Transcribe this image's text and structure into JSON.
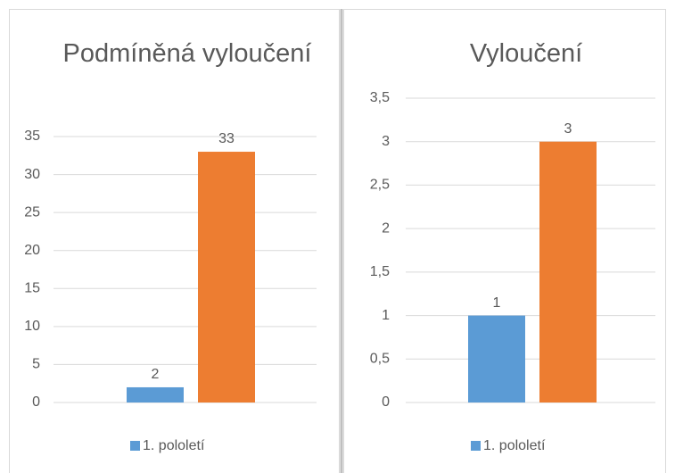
{
  "chart_data": [
    {
      "type": "bar",
      "title": "Podmíněná vyloučení",
      "series": [
        {
          "name": "1. pololetí",
          "color": "#5b9bd5",
          "values": [
            2
          ]
        },
        {
          "color": "#ed7d31",
          "values": [
            33
          ]
        }
      ],
      "ylim": [
        0,
        35
      ],
      "yticks": [
        0,
        5,
        10,
        15,
        20,
        25,
        30,
        35
      ],
      "grid": true,
      "legend": "bottom"
    },
    {
      "type": "bar",
      "title": "Vyloučení",
      "series": [
        {
          "name": "1. pololetí",
          "color": "#5b9bd5",
          "values": [
            1
          ]
        },
        {
          "color": "#ed7d31",
          "values": [
            3
          ]
        }
      ],
      "ylim": [
        0,
        3.5
      ],
      "yticks": [
        0,
        {
          "value": 0.5,
          "label": "0,5"
        },
        1,
        {
          "value": 1.5,
          "label": "1,5"
        },
        2,
        {
          "value": 2.5,
          "label": "2,5"
        },
        3,
        {
          "value": 3.5,
          "label": "3,5"
        }
      ],
      "grid": true,
      "legend": "bottom"
    }
  ]
}
